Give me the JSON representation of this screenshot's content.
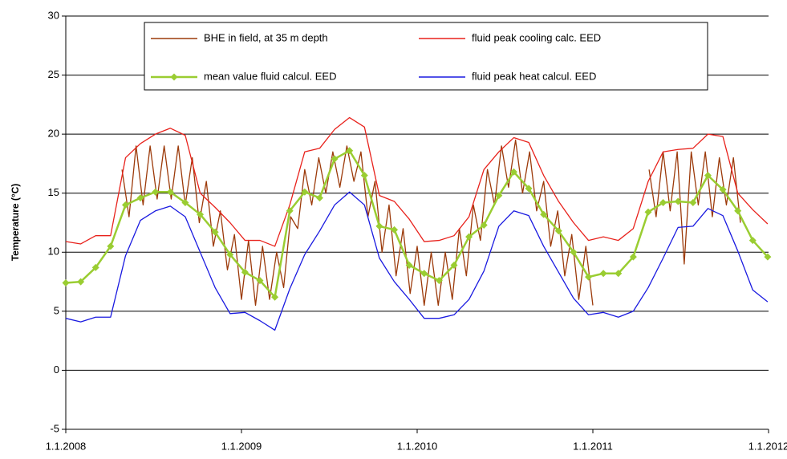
{
  "chart_data": {
    "type": "line",
    "ylabel": "Temperature (°C)",
    "xlim": [
      2008,
      2012
    ],
    "xticks": [
      {
        "value": 2008,
        "label": "1.1.2008"
      },
      {
        "value": 2009,
        "label": "1.1.2009"
      },
      {
        "value": 2010,
        "label": "1.1.2010"
      },
      {
        "value": 2011,
        "label": "1.1.2011"
      },
      {
        "value": 2012,
        "label": "1.1.2012"
      }
    ],
    "ylim": [
      -5,
      30
    ],
    "yticks": [
      -5,
      0,
      5,
      10,
      15,
      20,
      25,
      30
    ],
    "grid": true,
    "legend": "top",
    "x": [
      2008,
      2008.085,
      2008.17,
      2008.255,
      2008.34,
      2008.425,
      2008.51,
      2008.595,
      2008.68,
      2008.765,
      2008.85,
      2008.935,
      2009.02,
      2009.105,
      2009.19,
      2009.275,
      2009.36,
      2009.445,
      2009.53,
      2009.615,
      2009.7,
      2009.785,
      2009.87,
      2009.955,
      2010.04,
      2010.125,
      2010.21,
      2010.295,
      2010.38,
      2010.465,
      2010.55,
      2010.635,
      2010.72,
      2010.805,
      2010.89,
      2010.975,
      2011.06,
      2011.145,
      2011.23,
      2011.315,
      2011.4,
      2011.485,
      2011.57,
      2011.655,
      2011.74,
      2011.825,
      2011.91,
      2011.995
    ],
    "series": [
      {
        "name": "BHE in field, at 35 m depth",
        "color": "#9c3a0a",
        "x": [
          2008.32,
          2008.36,
          2008.4,
          2008.44,
          2008.48,
          2008.52,
          2008.56,
          2008.6,
          2008.64,
          2008.68,
          2008.72,
          2008.76,
          2008.8,
          2008.84,
          2008.88,
          2008.92,
          2008.96,
          2009.0,
          2009.04,
          2009.08,
          2009.12,
          2009.16,
          2009.2,
          2009.24,
          2009.28,
          2009.32,
          2009.36,
          2009.4,
          2009.44,
          2009.48,
          2009.52,
          2009.56,
          2009.6,
          2009.64,
          2009.68,
          2009.72,
          2009.76,
          2009.8,
          2009.84,
          2009.88,
          2009.92,
          2009.96,
          2010.0,
          2010.04,
          2010.08,
          2010.12,
          2010.16,
          2010.2,
          2010.24,
          2010.28,
          2010.32,
          2010.36,
          2010.4,
          2010.44,
          2010.48,
          2010.52,
          2010.56,
          2010.6,
          2010.64,
          2010.68,
          2010.72,
          2010.76,
          2010.8,
          2010.84,
          2010.88,
          2010.92,
          2010.96,
          2011.0,
          2011.04,
          2011.08,
          2011.12,
          2011.16,
          2011.2,
          2011.24,
          2011.28,
          2011.32,
          2011.36,
          2011.4,
          2011.44,
          2011.48,
          2011.52,
          2011.56,
          2011.6,
          2011.64,
          2011.68,
          2011.72,
          2011.76,
          2011.8,
          2011.84
        ],
        "values": [
          17,
          13,
          19,
          14,
          19,
          14.5,
          19,
          14.5,
          19,
          14,
          18,
          12.5,
          16,
          10.5,
          13.5,
          8.5,
          11.5,
          6,
          11,
          5.5,
          10.5,
          6,
          10,
          7,
          13,
          12,
          17,
          14,
          18,
          15,
          18.5,
          15.5,
          19,
          16,
          18.5,
          13,
          16,
          10,
          14,
          8,
          12,
          6.5,
          10.5,
          5.5,
          10,
          5.5,
          10,
          6,
          12,
          8,
          14,
          11,
          17,
          14,
          19,
          15.5,
          19.5,
          15,
          18.5,
          13.5,
          16,
          10.5,
          13.5,
          8,
          11.5,
          6,
          10.5,
          5.5,
          null,
          null,
          null,
          null,
          null,
          null,
          null,
          17,
          13,
          18.5,
          13.5,
          18.5,
          9,
          18.5,
          14,
          18.5,
          13,
          18,
          14,
          18,
          12.5
        ]
      },
      {
        "name": "fluid peak cooling calc. EED",
        "color": "#e8221c",
        "values": [
          10.9,
          10.7,
          11.4,
          11.4,
          18.0,
          19.2,
          20.0,
          20.5,
          19.9,
          15.0,
          13.8,
          12.5,
          11.0,
          11.0,
          10.5,
          14.0,
          18.5,
          18.8,
          20.4,
          21.4,
          20.6,
          14.8,
          14.3,
          12.8,
          10.9,
          11.0,
          11.4,
          13.0,
          17.0,
          18.5,
          19.7,
          19.3,
          16.5,
          14.3,
          12.5,
          11.0,
          11.3,
          11.0,
          12.0,
          16.0,
          18.5,
          18.7,
          18.8,
          20.0,
          19.8,
          15.0,
          13.6,
          12.4
        ]
      },
      {
        "name": "mean value fluid calcul. EED",
        "color": "#9acd32",
        "marker": "diamond",
        "values": [
          7.4,
          7.5,
          8.7,
          10.5,
          14.0,
          14.6,
          15.1,
          15.1,
          14.2,
          13.2,
          11.7,
          9.8,
          8.3,
          7.6,
          6.2,
          13.5,
          15.1,
          14.6,
          17.9,
          18.6,
          16.5,
          12.2,
          11.9,
          8.9,
          8.2,
          7.6,
          8.9,
          11.3,
          12.3,
          14.8,
          16.8,
          15.4,
          13.2,
          11.8,
          10.0,
          7.9,
          8.2,
          8.2,
          9.6,
          13.4,
          14.2,
          14.3,
          14.2,
          16.5,
          15.3,
          13.5,
          11.0,
          9.6
        ]
      },
      {
        "name": "fluid peak heat calcul. EED",
        "color": "#1a1ae0",
        "values": [
          4.4,
          4.1,
          4.5,
          4.5,
          9.7,
          12.7,
          13.5,
          13.9,
          13.0,
          10.0,
          7.0,
          4.8,
          4.9,
          4.2,
          3.4,
          6.9,
          9.8,
          11.8,
          14.0,
          15.1,
          14.0,
          9.5,
          7.5,
          6.0,
          4.4,
          4.4,
          4.7,
          6.0,
          8.4,
          12.2,
          13.5,
          13.1,
          10.5,
          8.3,
          6.1,
          4.7,
          4.9,
          4.5,
          5.0,
          7.0,
          9.5,
          12.1,
          12.2,
          13.7,
          13.1,
          10.1,
          6.8,
          5.8
        ]
      }
    ]
  }
}
